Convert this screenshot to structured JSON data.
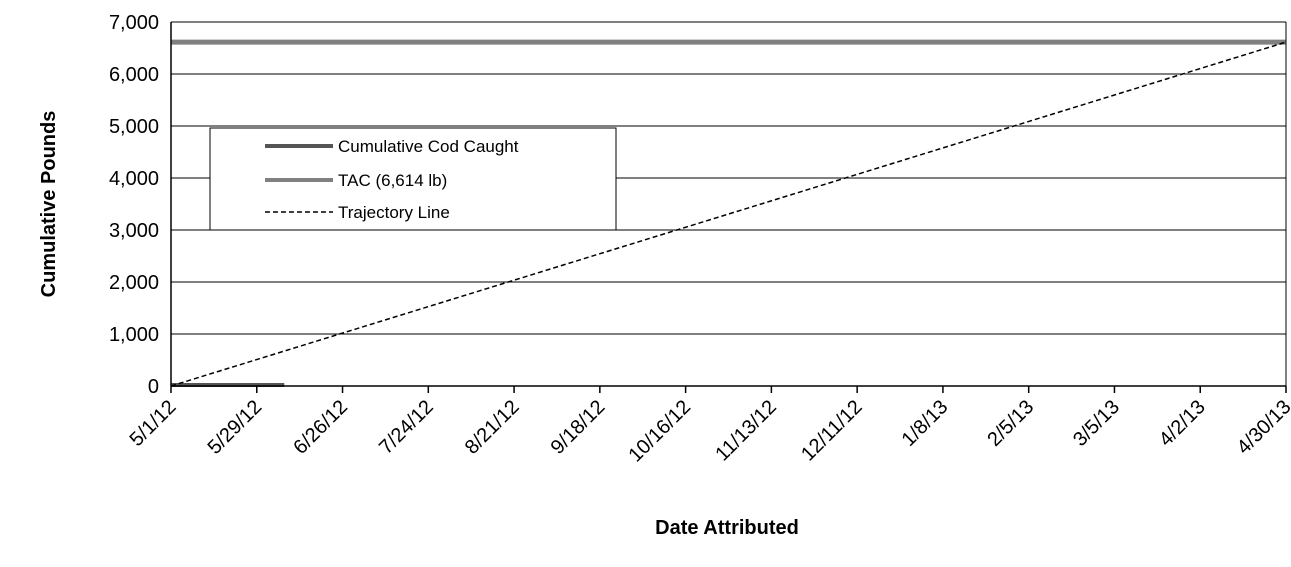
{
  "chart_data": {
    "type": "line",
    "title": "",
    "xlabel": "Date Attributed",
    "ylabel": "Cumulative Pounds",
    "ylim": [
      0,
      7000
    ],
    "y_ticks": [
      0,
      1000,
      2000,
      3000,
      4000,
      5000,
      6000,
      7000
    ],
    "y_tick_labels": [
      "0",
      "1,000",
      "2,000",
      "3,000",
      "4,000",
      "5,000",
      "6,000",
      "7,000"
    ],
    "x_tick_labels": [
      "5/1/12",
      "5/29/12",
      "6/26/12",
      "7/24/12",
      "8/21/12",
      "9/18/12",
      "10/16/12",
      "11/13/12",
      "12/11/12",
      "1/8/13",
      "2/5/13",
      "3/5/13",
      "4/2/13",
      "4/30/13"
    ],
    "xlim": [
      "5/1/12",
      "4/30/13"
    ],
    "grid": "horizontal",
    "legend_placement": "left",
    "series": [
      {
        "name": "Cumulative Cod Caught",
        "color": "#555555",
        "style": "solid",
        "points": [
          {
            "x": "5/1/12",
            "y": 20
          },
          {
            "x": "6/7/12",
            "y": 20
          }
        ]
      },
      {
        "name": "TAC (6,614 lb)",
        "color": "#808080",
        "style": "solid",
        "points": [
          {
            "x": "5/1/12",
            "y": 6614
          },
          {
            "x": "4/30/13",
            "y": 6614
          }
        ]
      },
      {
        "name": "Trajectory Line",
        "color": "#000000",
        "style": "dashed",
        "points": [
          {
            "x": "5/1/12",
            "y": 0
          },
          {
            "x": "4/30/13",
            "y": 6614
          }
        ]
      }
    ]
  }
}
